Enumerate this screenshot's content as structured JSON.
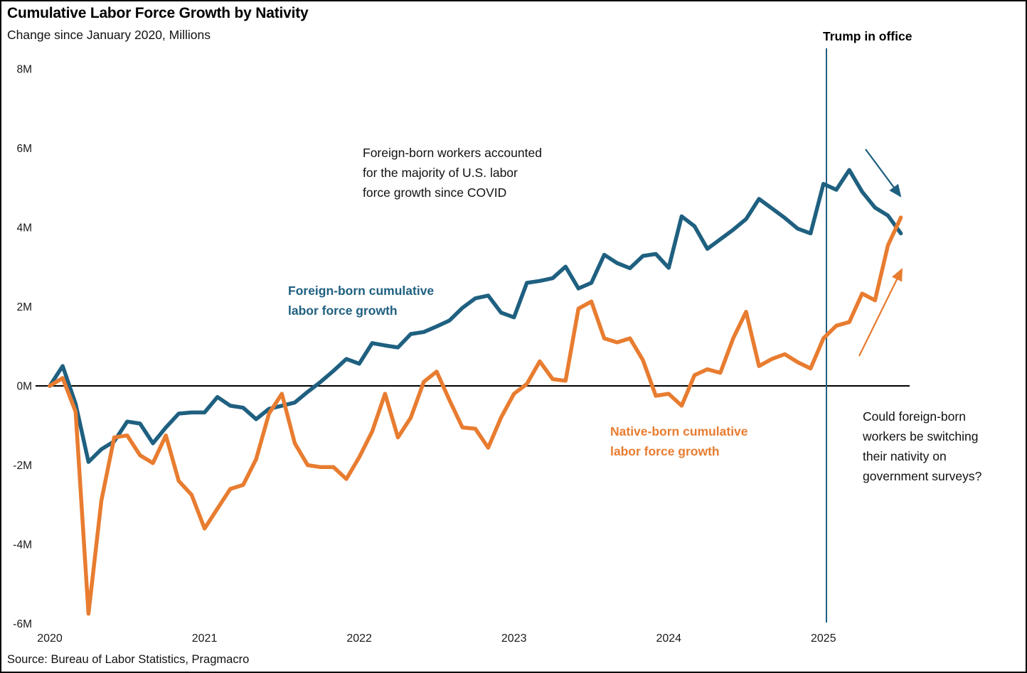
{
  "header": {
    "title": "Cumulative Labor Force Growth by Nativity",
    "subtitle": "Change since January 2020, Millions"
  },
  "annotations": {
    "trump_label": "Trump in office",
    "covid_note": "Foreign-born workers accounted\nfor the majority of U.S. labor\nforce growth since COVID",
    "foreign_series_label": "Foreign-born cumulative\nlabor force growth",
    "native_series_label": "Native-born cumulative\nlabor force growth",
    "nativity_question": "Could foreign-born\nworkers be switching\ntheir nativity on\ngovernment surveys?"
  },
  "source": "Source: Bureau of Labor Statistics, Pragmacro",
  "colors": {
    "foreign": "#1f6080",
    "native": "#e87c30",
    "axis": "#000000",
    "event_line": "#1f6080",
    "text": "#1a1a1a"
  },
  "chart_data": {
    "type": "line",
    "title": "Cumulative Labor Force Growth by Nativity",
    "subtitle": "Change since January 2020, Millions",
    "xlabel": "",
    "ylabel": "Change since January 2020, Millions",
    "x_unit": "month",
    "x_start": "2020-01",
    "x_end": "2025-07",
    "x_ticks": [
      "2020",
      "2021",
      "2022",
      "2023",
      "2024",
      "2025"
    ],
    "y_ticks": [
      "8M",
      "6M",
      "4M",
      "2M",
      "0M",
      "-2M",
      "-4M",
      "-6M"
    ],
    "y_tick_values": [
      8,
      6,
      4,
      2,
      0,
      -2,
      -4,
      -6
    ],
    "ylim": [
      -6.5,
      8.5
    ],
    "grid": false,
    "zero_line": true,
    "event_line": {
      "label": "Trump in office",
      "x": "2025-01"
    },
    "series": [
      {
        "name": "Foreign-born cumulative labor force growth",
        "color": "#1f6080",
        "values": [
          0,
          0.5,
          -0.45,
          -1.92,
          -1.6,
          -1.4,
          -0.9,
          -0.95,
          -1.45,
          -1.05,
          -0.7,
          -0.67,
          -0.67,
          -0.28,
          -0.5,
          -0.55,
          -0.84,
          -0.58,
          -0.5,
          -0.42,
          -0.15,
          0.1,
          0.38,
          0.68,
          0.56,
          1.08,
          1.02,
          0.97,
          1.31,
          1.36,
          1.5,
          1.65,
          1.97,
          2.21,
          2.28,
          1.85,
          1.73,
          2.6,
          2.65,
          2.72,
          3.01,
          2.46,
          2.6,
          3.31,
          3.1,
          2.97,
          3.28,
          3.33,
          2.98,
          4.28,
          4.03,
          3.46,
          3.7,
          3.94,
          4.21,
          4.72,
          4.48,
          4.24,
          3.97,
          3.85,
          5.1,
          4.95,
          5.45,
          4.9,
          4.5,
          4.3,
          3.85
        ]
      },
      {
        "name": "Native-born cumulative labor force growth",
        "color": "#e87c30",
        "values": [
          0,
          0.2,
          -0.65,
          -5.75,
          -2.9,
          -1.3,
          -1.25,
          -1.75,
          -1.95,
          -1.25,
          -2.4,
          -2.75,
          -3.6,
          -3.1,
          -2.6,
          -2.5,
          -1.85,
          -0.7,
          -0.2,
          -1.45,
          -2.0,
          -2.05,
          -2.05,
          -2.35,
          -1.8,
          -1.15,
          -0.2,
          -1.3,
          -0.8,
          0.1,
          0.36,
          -0.36,
          -1.05,
          -1.08,
          -1.56,
          -0.8,
          -0.2,
          0.05,
          0.62,
          0.17,
          0.13,
          1.95,
          2.13,
          1.2,
          1.1,
          1.2,
          0.65,
          -0.25,
          -0.2,
          -0.5,
          0.27,
          0.42,
          0.33,
          1.2,
          1.87,
          0.5,
          0.68,
          0.8,
          0.6,
          0.44,
          1.2,
          1.52,
          1.61,
          2.33,
          2.16,
          3.55,
          4.25
        ]
      }
    ]
  }
}
